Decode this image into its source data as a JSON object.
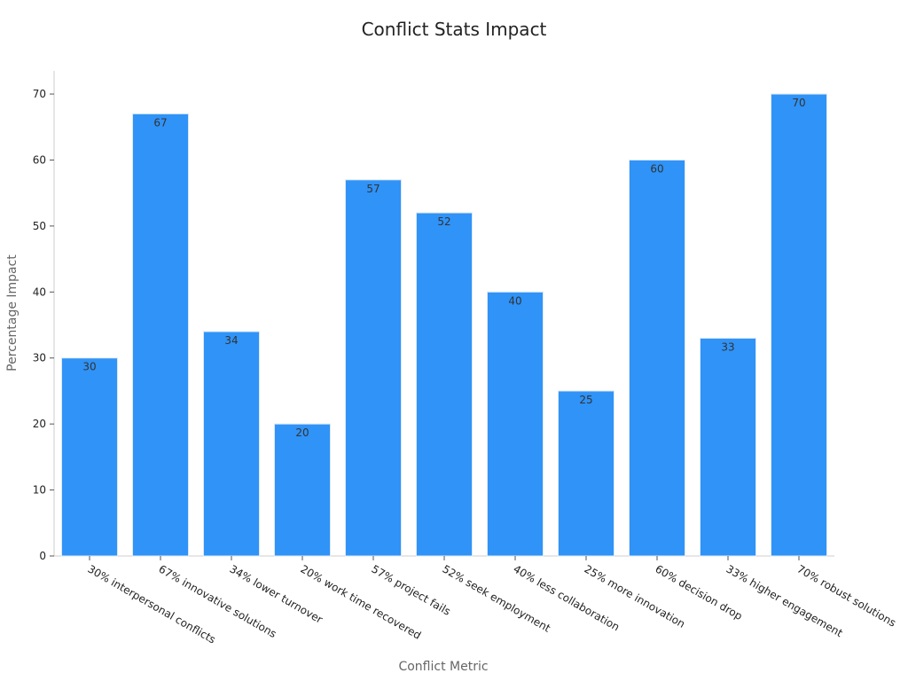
{
  "chart_data": {
    "type": "bar",
    "title": "Conflict Stats Impact",
    "xlabel": "Conflict Metric",
    "ylabel": "Percentage Impact",
    "categories": [
      "30% interpersonal conflicts",
      "67% innovative solutions",
      "34% lower turnover",
      "20% work time recovered",
      "57% project fails",
      "52% seek employment",
      "40% less collaboration",
      "25% more innovation",
      "60% decision drop",
      "33% higher engagement",
      "70% robust solutions"
    ],
    "values": [
      30,
      67,
      34,
      20,
      57,
      52,
      40,
      25,
      60,
      33,
      70
    ],
    "yticks": [
      0,
      10,
      20,
      30,
      40,
      50,
      60,
      70
    ],
    "ylim": [
      0,
      73.5
    ],
    "bar_color": "#2f93f8",
    "grid": false,
    "legend": "none"
  }
}
